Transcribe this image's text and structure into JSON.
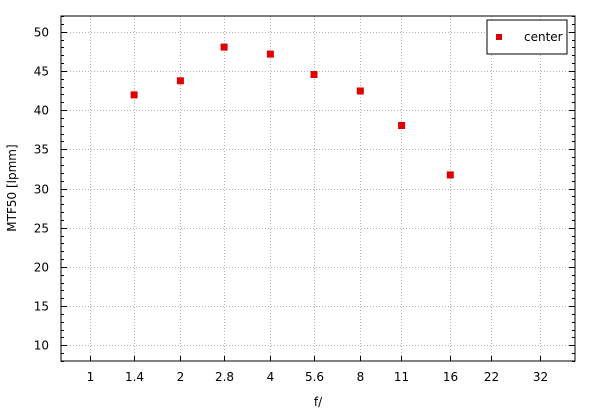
{
  "chart_data": {
    "type": "scatter",
    "title": "",
    "xlabel": "f/",
    "ylabel": "MTF50 [lpmm]",
    "x_scale": "log2",
    "x_ticks": [
      1,
      1.4,
      2,
      2.8,
      4,
      5.6,
      8,
      11,
      16,
      22,
      32
    ],
    "x_tick_labels": [
      "1",
      "1.4",
      "2",
      "2.8",
      "4",
      "5.6",
      "8",
      "11",
      "16",
      "22",
      "32"
    ],
    "xlim": [
      0.8,
      42
    ],
    "y_ticks": [
      10,
      15,
      20,
      25,
      30,
      35,
      40,
      45,
      50
    ],
    "y_tick_labels": [
      "10",
      "15",
      "20",
      "25",
      "30",
      "35",
      "40",
      "45",
      "50"
    ],
    "ylim": [
      8,
      52
    ],
    "grid": true,
    "legend_position": "top-right",
    "series": [
      {
        "name": "center",
        "color": "#e00000",
        "marker": "square",
        "points": [
          {
            "x": 1.4,
            "y": 42.0
          },
          {
            "x": 2,
            "y": 43.8
          },
          {
            "x": 2.8,
            "y": 48.1
          },
          {
            "x": 4,
            "y": 47.2
          },
          {
            "x": 5.6,
            "y": 44.6
          },
          {
            "x": 8,
            "y": 42.5
          },
          {
            "x": 11,
            "y": 38.1
          },
          {
            "x": 16,
            "y": 31.8
          }
        ]
      }
    ]
  }
}
